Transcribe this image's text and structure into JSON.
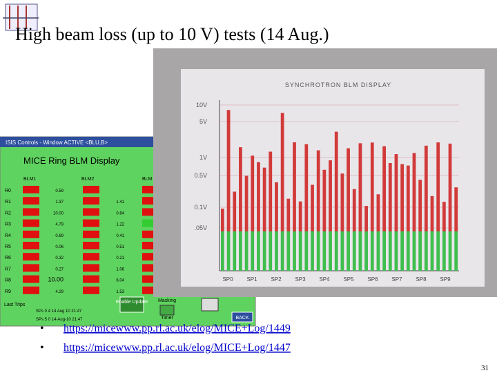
{
  "slide": {
    "title": "High beam loss (up to 10 V) tests (14 Aug.)",
    "page_number": "31",
    "bullets": [
      "https://micewww.pp.rl.ac.uk/elog/MICE+Log/1449",
      "https://micewww.pp.rl.ac.uk/elog/MICE+Log/1447"
    ],
    "photo": {
      "title": "SYNCHROTRON BLM DISPLAY",
      "levels": [
        "10V",
        "5V",
        "1V",
        "0.5V",
        "0.1V",
        ".05V"
      ],
      "sectors": [
        "SP0",
        "SP1",
        "SP2",
        "SP3",
        "SP4",
        "SP5",
        "SP6",
        "SP7",
        "SP8",
        "SP9"
      ]
    },
    "screenshot": {
      "window_title": "ISIS Controls - Window ACTIVE <BLU,B>",
      "heading": "MICE Ring BLM Display",
      "columns": [
        "BLM1",
        "BLM2",
        "BLM"
      ],
      "rows": [
        {
          "label": "R0",
          "blm1": "0.59"
        },
        {
          "label": "R1",
          "blm1": "1.37",
          "blm2": "1.41"
        },
        {
          "label": "R2",
          "blm1": "10.00",
          "blm2": "0.64"
        },
        {
          "label": "R3",
          "blm1": "4.79",
          "blm2": "1.22"
        },
        {
          "label": "R4",
          "blm1": "0.69",
          "blm2": "0.41"
        },
        {
          "label": "R5",
          "blm1": "0.06",
          "blm2": "0.51"
        },
        {
          "label": "R6",
          "blm1": "0.32",
          "blm2": "0.21"
        },
        {
          "label": "R7",
          "blm1": "0.27",
          "blm2": "1.06"
        },
        {
          "label": "R8",
          "blm1": "10.00",
          "blm2": "6.04"
        },
        {
          "label": "R9",
          "blm1": "4.29",
          "blm2": "1.53"
        }
      ],
      "last_trips": "Last Trips",
      "trips": [
        "SPs 0   4  14 Aug 10 21:47",
        "SPs 5   0  14-Aug-10 21:47"
      ],
      "enable_update": "Enable Update",
      "masking": "Masking",
      "timer": "Timer",
      "back": "BACK"
    }
  }
}
